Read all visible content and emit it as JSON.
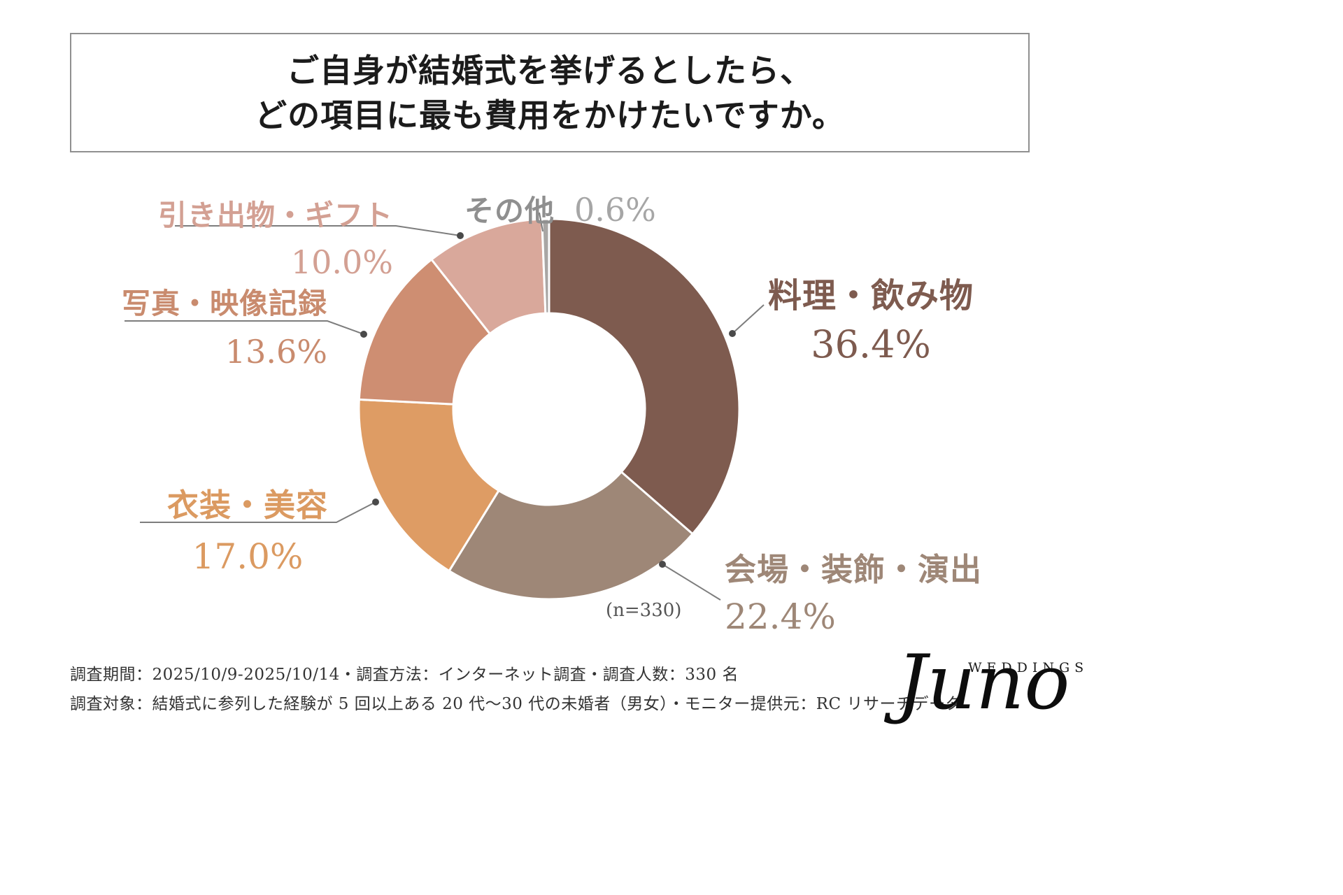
{
  "title": {
    "line1": "ご自身が結婚式を挙げるとしたら、",
    "line2": "どの項目に最も費用をかけたいですか。"
  },
  "chart_data": {
    "type": "pie",
    "subtype": "donut",
    "title": "ご自身が結婚式を挙げるとしたら、どの項目に最も費用をかけたいですか。",
    "n_label": "(n=330)",
    "start_angle_deg": -90,
    "direction": "clockwise",
    "segments": [
      {
        "label": "料理・飲み物",
        "value": 36.4,
        "display": "36.4%",
        "color": "#7E5B4F",
        "label_color": "#7E5B4F"
      },
      {
        "label": "会場・装飾・演出",
        "value": 22.4,
        "display": "22.4%",
        "color": "#9E8777",
        "label_color": "#9E8777"
      },
      {
        "label": "衣装・美容",
        "value": 17.0,
        "display": "17.0%",
        "color": "#DE9C64",
        "label_color": "#DB9A61"
      },
      {
        "label": "写真・映像記録",
        "value": 13.6,
        "display": "13.6%",
        "color": "#CE8E72",
        "label_color": "#C98B6E"
      },
      {
        "label": "引き出物・ギフト",
        "value": 10.0,
        "display": "10.0%",
        "color": "#D9A89B",
        "label_color": "#D3A093"
      },
      {
        "label": "その他",
        "value": 0.6,
        "display": "0.6%",
        "color": "#A9A6A4",
        "label_color": "#8F8F8F"
      }
    ]
  },
  "footer": {
    "line1": "調査期間：2025/10/9-2025/10/14・調査方法：インターネット調査・調査人数：330 名",
    "line2": "調査対象：結婚式に参列した経験が 5 回以上ある 20 代〜30 代の未婚者（男女）・モニター提供元：RC リサーチデータ"
  },
  "logo": {
    "brand_top": "WEDDINGS",
    "brand_name": "Juno"
  }
}
